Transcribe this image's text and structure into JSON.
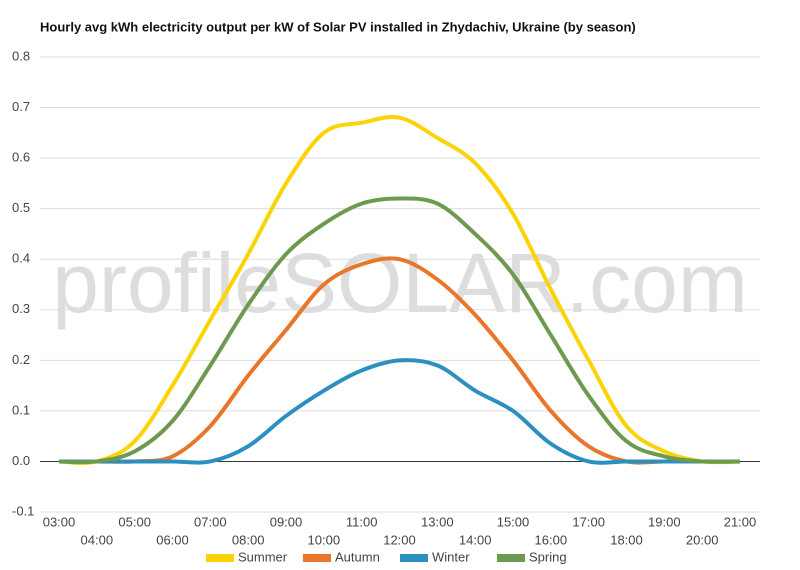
{
  "chart_data": {
    "type": "line",
    "title": "Hourly avg kWh electricity output per kW of Solar PV installed in Zhydachiv, Ukraine (by season)",
    "watermark": "profileSOLAR.com",
    "categories": [
      "03:00",
      "04:00",
      "05:00",
      "06:00",
      "07:00",
      "08:00",
      "09:00",
      "10:00",
      "11:00",
      "12:00",
      "13:00",
      "14:00",
      "15:00",
      "16:00",
      "17:00",
      "18:00",
      "19:00",
      "20:00",
      "21:00"
    ],
    "series": [
      {
        "name": "Summer",
        "color": "#fbd307",
        "values": [
          0,
          0,
          0.04,
          0.15,
          0.28,
          0.41,
          0.55,
          0.65,
          0.67,
          0.68,
          0.64,
          0.59,
          0.49,
          0.34,
          0.2,
          0.07,
          0.02,
          0,
          0
        ]
      },
      {
        "name": "Autumn",
        "color": "#e8762b",
        "values": [
          0,
          0,
          0,
          0.01,
          0.07,
          0.17,
          0.26,
          0.35,
          0.39,
          0.4,
          0.36,
          0.29,
          0.2,
          0.1,
          0.03,
          0,
          0,
          0,
          0
        ]
      },
      {
        "name": "Winter",
        "color": "#2b90c0",
        "values": [
          0,
          0,
          0,
          0,
          0,
          0.03,
          0.09,
          0.14,
          0.18,
          0.2,
          0.19,
          0.14,
          0.1,
          0.035,
          0,
          0,
          0,
          0,
          0
        ]
      },
      {
        "name": "Spring",
        "color": "#6e9a50",
        "values": [
          0,
          0,
          0.02,
          0.08,
          0.19,
          0.31,
          0.41,
          0.47,
          0.51,
          0.52,
          0.51,
          0.45,
          0.37,
          0.25,
          0.13,
          0.04,
          0.01,
          0,
          0
        ]
      }
    ],
    "ylim": [
      -0.1,
      0.8
    ],
    "yticks": [
      -0.1,
      {
        "value": 0,
        "label": "0.0"
      },
      0.1,
      0.2,
      0.3,
      0.4,
      0.5,
      0.6,
      0.7,
      0.8
    ],
    "grid": true,
    "legend": "bottom"
  }
}
